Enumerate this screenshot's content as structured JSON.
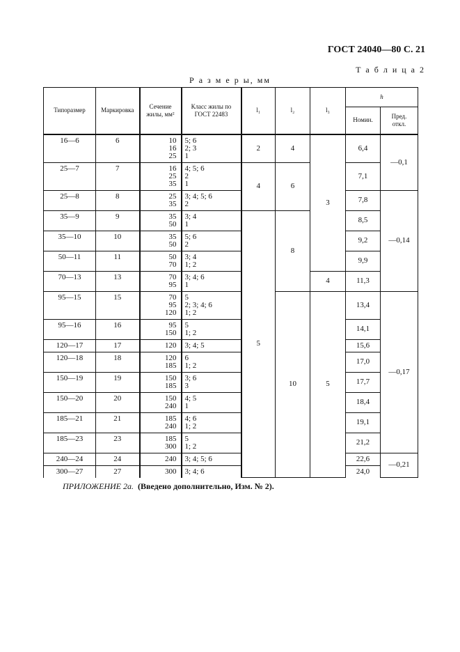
{
  "header": {
    "doc": "ГОСТ 24040—80 С. 21",
    "table_no": "Т а б л и ц а 2",
    "units": "Р а з м е р ы, мм"
  },
  "columns": {
    "type": "Типоразмер",
    "mark": "Маркировка",
    "section": "Сечение\nжилы, мм²",
    "class": "Класс жилы по\nГОСТ 22483",
    "l1": "l₁",
    "l2": "l₂",
    "l3": "l₃",
    "h": "h",
    "nom": "Номин.",
    "pred": "Пред.\nоткл."
  },
  "rows": [
    {
      "type": "16—6",
      "mark": "6",
      "section": "10\n16\n25",
      "class": "5; 6\n2; 3\n1",
      "nom": "6,4"
    },
    {
      "type": "25—7",
      "mark": "7",
      "section": "16\n25\n35",
      "class": "4; 5; 6\n2\n1",
      "nom": "7,1"
    },
    {
      "type": "25—8",
      "mark": "8",
      "section": "25\n35",
      "class": "3; 4; 5; 6\n2",
      "nom": "7,8"
    },
    {
      "type": "35—9",
      "mark": "9",
      "section": "35\n50",
      "class": "3; 4\n1",
      "nom": "8,5"
    },
    {
      "type": "35—10",
      "mark": "10",
      "section": "35\n50",
      "class": "5; 6\n2",
      "nom": "9,2"
    },
    {
      "type": "50—11",
      "mark": "11",
      "section": "50\n70",
      "class": "3; 4\n1; 2",
      "nom": "9,9"
    },
    {
      "type": "70—13",
      "mark": "13",
      "section": "70\n95",
      "class": "3; 4; 6\n1",
      "nom": "11,3"
    },
    {
      "type": "95—15",
      "mark": "15",
      "section": "70\n95\n120",
      "class": "5\n2; 3; 4; 6\n1; 2",
      "nom": "13,4"
    },
    {
      "type": "95—16",
      "mark": "16",
      "section": "95\n150",
      "class": "5\n1; 2",
      "nom": "14,1"
    },
    {
      "type": "120—17",
      "mark": "17",
      "section": "120",
      "class": "3; 4; 5",
      "nom": "15,6"
    },
    {
      "type": "120—18",
      "mark": "18",
      "section": "120\n185",
      "class": "6\n1; 2",
      "nom": "17,0"
    },
    {
      "type": "150—19",
      "mark": "19",
      "section": "150\n185",
      "class": "3; 6\n3",
      "nom": "17,7"
    },
    {
      "type": "150—20",
      "mark": "20",
      "section": "150\n240",
      "class": "4; 5\n1",
      "nom": "18,4"
    },
    {
      "type": "185—21",
      "mark": "21",
      "section": "185\n240",
      "class": "4; 6\n1; 2",
      "nom": "19,1"
    },
    {
      "type": "185—23",
      "mark": "23",
      "section": "185\n300",
      "class": "5\n1; 2",
      "nom": "21,2"
    },
    {
      "type": "240—24",
      "mark": "24",
      "section": "240",
      "class": "3; 4; 5; 6",
      "nom": "22,6"
    },
    {
      "type": "300—27",
      "mark": "27",
      "section": "300",
      "class": "3; 4; 6",
      "nom": "24,0"
    }
  ],
  "groups": {
    "l1": [
      {
        "value": "2",
        "rows": 1
      },
      {
        "value": "4",
        "rows": 2
      },
      {
        "value": "5",
        "rows": 14
      }
    ],
    "l2": [
      {
        "value": "4",
        "rows": 1
      },
      {
        "value": "6",
        "rows": 2
      },
      {
        "value": "8",
        "rows": 4
      },
      {
        "value": "10",
        "rows": 10
      }
    ],
    "l3": [
      {
        "value": "3",
        "rows": 6
      },
      {
        "value": "4",
        "rows": 1
      },
      {
        "value": "5",
        "rows": 10
      }
    ],
    "pred": [
      {
        "value": "—0,1",
        "rows": 2
      },
      {
        "value": "—0,14",
        "rows": 5
      },
      {
        "value": "—0,17",
        "rows": 8
      },
      {
        "value": "—0,21",
        "rows": 2
      }
    ]
  },
  "note": {
    "italic": "ПРИЛОЖЕНИЕ 2а.",
    "bold": "(Введено дополнительно, Изм. № 2)."
  }
}
